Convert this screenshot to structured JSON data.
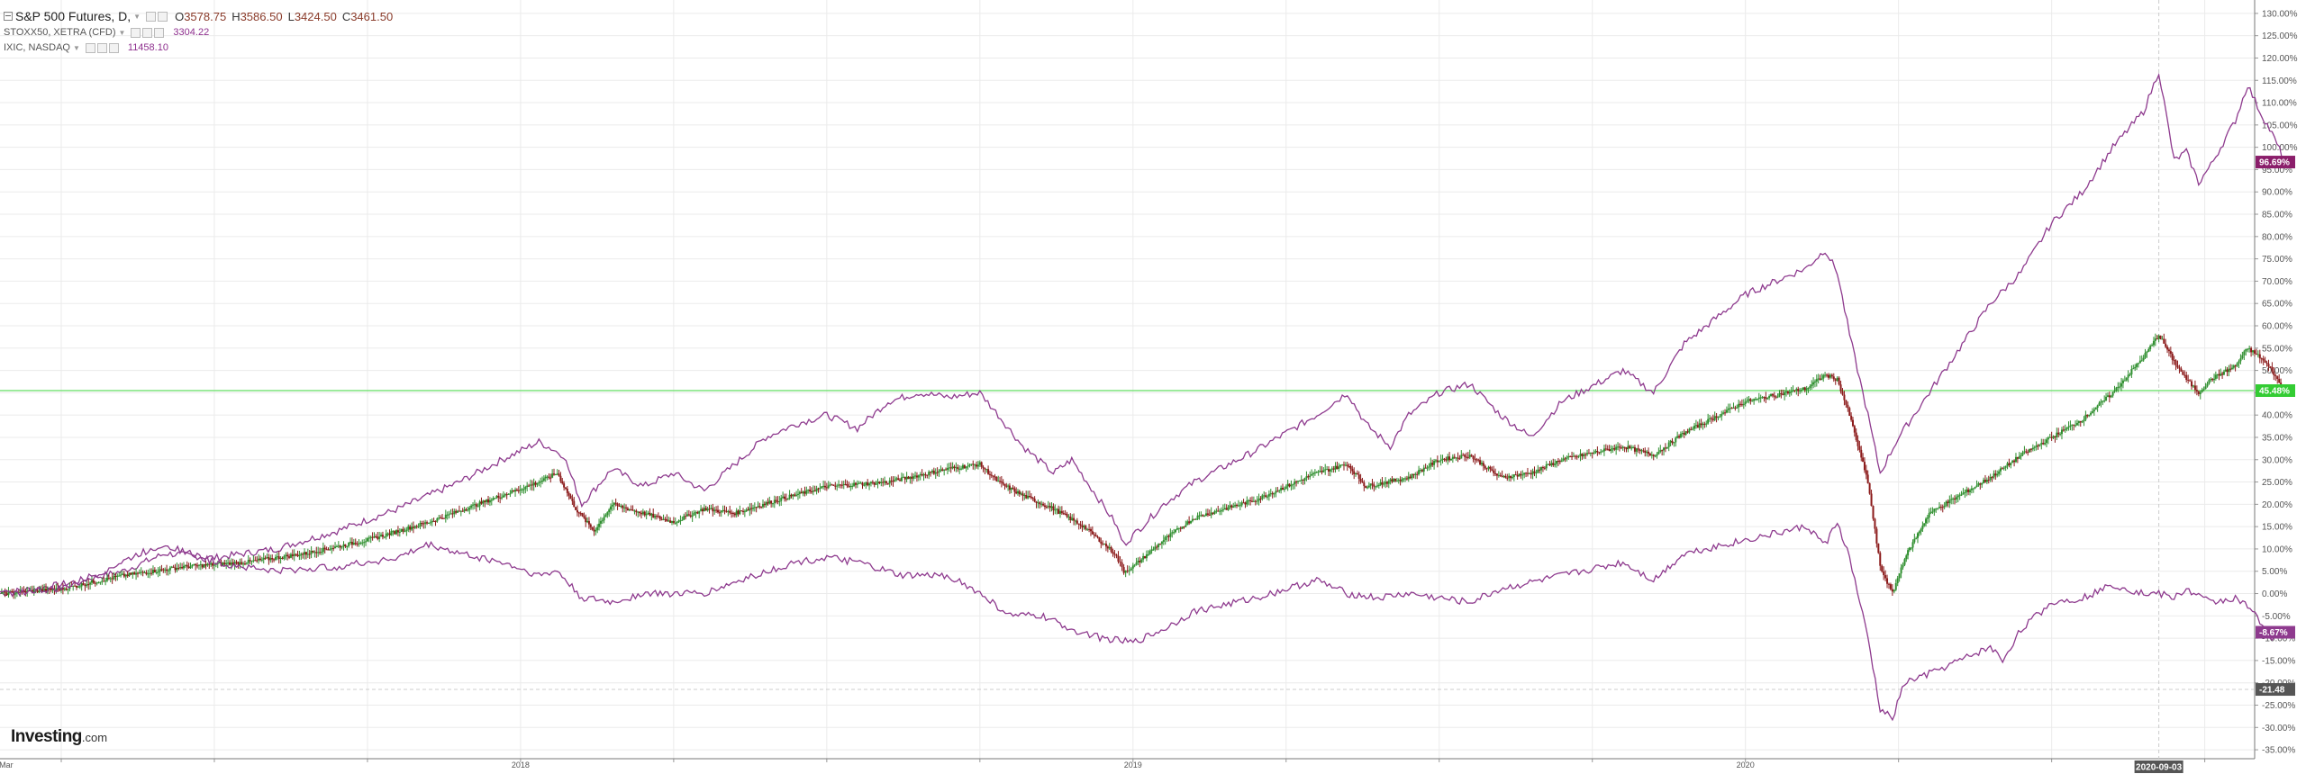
{
  "legend": {
    "main": {
      "name": "S&P 500 Futures, D,",
      "open_label": "O",
      "open": "3578.75",
      "high_label": "H",
      "high": "3586.50",
      "low_label": "L",
      "low": "3424.50",
      "close_label": "C",
      "close": "3461.50"
    },
    "series": [
      {
        "name": "STOXX50, XETRA (CFD)",
        "value": "3304.22"
      },
      {
        "name": "IXIC, NASDAQ",
        "value": "11458.10"
      }
    ]
  },
  "logo": {
    "brand": "Investing",
    "suffix": ".com"
  },
  "colors": {
    "up": "#2f8f2f",
    "down": "#8b1a1a",
    "overlay": "#8e3a8e",
    "hline": "#7be37b",
    "grid": "#ebebeb",
    "axis_text": "#555555",
    "crosshair": "#cccccc"
  },
  "chart_data": {
    "type": "line",
    "y_unit": "%",
    "ylim": [
      -37,
      133
    ],
    "y_ticks": [
      "130.00%",
      "125.00%",
      "120.00%",
      "115.00%",
      "110.00%",
      "105.00%",
      "100.00%",
      "95.00%",
      "90.00%",
      "85.00%",
      "80.00%",
      "75.00%",
      "70.00%",
      "65.00%",
      "60.00%",
      "55.00%",
      "50.00%",
      "45.00%",
      "40.00%",
      "35.00%",
      "30.00%",
      "25.00%",
      "20.00%",
      "15.00%",
      "10.00%",
      "5.00%",
      "0.00%",
      "-5.00%",
      "-10.00%",
      "-15.00%",
      "-20.00%",
      "-25.00%",
      "-30.00%",
      "-35.00%"
    ],
    "y_tick_values": [
      130,
      125,
      120,
      115,
      110,
      105,
      100,
      95,
      90,
      85,
      80,
      75,
      70,
      65,
      60,
      55,
      50,
      45,
      40,
      35,
      30,
      25,
      20,
      15,
      10,
      5,
      0,
      -5,
      -10,
      -15,
      -20,
      -25,
      -30,
      -35
    ],
    "x_range": [
      2017.15,
      2020.83
    ],
    "x_ticks": [
      {
        "label": "Mar",
        "t": 2017.16
      },
      {
        "label": "2018",
        "t": 2018.0
      },
      {
        "label": "2019",
        "t": 2019.0
      },
      {
        "label": "2020",
        "t": 2020.0
      }
    ],
    "grid": true,
    "hline_value": 45.48,
    "hline_label": "45.48%",
    "crosshair": {
      "t": 2020.675,
      "date_label": "2020-09-03",
      "value_label": "-21.48"
    },
    "series": [
      {
        "name": "IXIC, NASDAQ",
        "kind": "line",
        "last_label": "96.69%",
        "points": [
          [
            2017.15,
            0
          ],
          [
            2017.25,
            2
          ],
          [
            2017.35,
            5
          ],
          [
            2017.42,
            9
          ],
          [
            2017.5,
            8
          ],
          [
            2017.6,
            10
          ],
          [
            2017.7,
            14
          ],
          [
            2017.8,
            19
          ],
          [
            2017.9,
            25
          ],
          [
            2017.97,
            30
          ],
          [
            2018.03,
            34
          ],
          [
            2018.07,
            31
          ],
          [
            2018.1,
            20
          ],
          [
            2018.15,
            28
          ],
          [
            2018.2,
            24
          ],
          [
            2018.25,
            27
          ],
          [
            2018.3,
            23
          ],
          [
            2018.35,
            29
          ],
          [
            2018.4,
            35
          ],
          [
            2018.45,
            38
          ],
          [
            2018.5,
            40
          ],
          [
            2018.55,
            37
          ],
          [
            2018.6,
            43
          ],
          [
            2018.65,
            45
          ],
          [
            2018.7,
            44
          ],
          [
            2018.75,
            45
          ],
          [
            2018.78,
            40
          ],
          [
            2018.82,
            33
          ],
          [
            2018.87,
            27
          ],
          [
            2018.9,
            30
          ],
          [
            2018.94,
            22
          ],
          [
            2018.97,
            16
          ],
          [
            2018.985,
            11
          ],
          [
            2019.0,
            13
          ],
          [
            2019.05,
            20
          ],
          [
            2019.1,
            25
          ],
          [
            2019.2,
            32
          ],
          [
            2019.3,
            40
          ],
          [
            2019.35,
            45
          ],
          [
            2019.38,
            38
          ],
          [
            2019.42,
            33
          ],
          [
            2019.45,
            40
          ],
          [
            2019.5,
            45
          ],
          [
            2019.55,
            47
          ],
          [
            2019.6,
            40
          ],
          [
            2019.65,
            35
          ],
          [
            2019.7,
            43
          ],
          [
            2019.8,
            50
          ],
          [
            2019.85,
            45
          ],
          [
            2019.9,
            56
          ],
          [
            2020.0,
            67
          ],
          [
            2020.1,
            73
          ],
          [
            2020.13,
            77
          ],
          [
            2020.15,
            72
          ],
          [
            2020.17,
            58
          ],
          [
            2020.2,
            40
          ],
          [
            2020.22,
            27
          ],
          [
            2020.25,
            35
          ],
          [
            2020.3,
            45
          ],
          [
            2020.35,
            55
          ],
          [
            2020.4,
            65
          ],
          [
            2020.45,
            72
          ],
          [
            2020.5,
            83
          ],
          [
            2020.55,
            90
          ],
          [
            2020.6,
            100
          ],
          [
            2020.65,
            108
          ],
          [
            2020.675,
            117
          ],
          [
            2020.7,
            97
          ],
          [
            2020.72,
            99
          ],
          [
            2020.74,
            92
          ],
          [
            2020.76,
            96
          ],
          [
            2020.8,
            106
          ],
          [
            2020.82,
            114
          ],
          [
            2020.84,
            108
          ],
          [
            2020.86,
            103
          ],
          [
            2020.88,
            97
          ]
        ]
      },
      {
        "name": "S&P 500 Futures",
        "kind": "candle",
        "last_label": "45.48%",
        "points": [
          [
            2017.15,
            0
          ],
          [
            2017.25,
            1
          ],
          [
            2017.35,
            4
          ],
          [
            2017.45,
            6
          ],
          [
            2017.55,
            7
          ],
          [
            2017.65,
            9
          ],
          [
            2017.75,
            12
          ],
          [
            2017.85,
            16
          ],
          [
            2017.95,
            21
          ],
          [
            2018.03,
            25
          ],
          [
            2018.06,
            27
          ],
          [
            2018.09,
            19
          ],
          [
            2018.12,
            14
          ],
          [
            2018.15,
            20
          ],
          [
            2018.2,
            18
          ],
          [
            2018.25,
            16
          ],
          [
            2018.3,
            19
          ],
          [
            2018.35,
            18
          ],
          [
            2018.42,
            21
          ],
          [
            2018.5,
            24
          ],
          [
            2018.6,
            25
          ],
          [
            2018.7,
            28
          ],
          [
            2018.75,
            29
          ],
          [
            2018.78,
            25
          ],
          [
            2018.82,
            22
          ],
          [
            2018.87,
            19
          ],
          [
            2018.92,
            15
          ],
          [
            2018.97,
            9
          ],
          [
            2018.985,
            5
          ],
          [
            2019.0,
            6
          ],
          [
            2019.05,
            12
          ],
          [
            2019.1,
            17
          ],
          [
            2019.2,
            21
          ],
          [
            2019.3,
            27
          ],
          [
            2019.35,
            29
          ],
          [
            2019.38,
            24
          ],
          [
            2019.45,
            26
          ],
          [
            2019.5,
            30
          ],
          [
            2019.55,
            31
          ],
          [
            2019.6,
            26
          ],
          [
            2019.65,
            27
          ],
          [
            2019.7,
            30
          ],
          [
            2019.8,
            33
          ],
          [
            2019.85,
            31
          ],
          [
            2019.9,
            36
          ],
          [
            2020.0,
            43
          ],
          [
            2020.1,
            46
          ],
          [
            2020.13,
            49
          ],
          [
            2020.15,
            48
          ],
          [
            2020.17,
            40
          ],
          [
            2020.2,
            25
          ],
          [
            2020.22,
            6
          ],
          [
            2020.24,
            0
          ],
          [
            2020.26,
            8
          ],
          [
            2020.3,
            18
          ],
          [
            2020.35,
            22
          ],
          [
            2020.4,
            26
          ],
          [
            2020.45,
            31
          ],
          [
            2020.5,
            35
          ],
          [
            2020.55,
            39
          ],
          [
            2020.6,
            45
          ],
          [
            2020.65,
            53
          ],
          [
            2020.675,
            58
          ],
          [
            2020.7,
            52
          ],
          [
            2020.72,
            48
          ],
          [
            2020.74,
            45
          ],
          [
            2020.76,
            48
          ],
          [
            2020.8,
            51
          ],
          [
            2020.82,
            55
          ],
          [
            2020.84,
            53
          ],
          [
            2020.86,
            50
          ],
          [
            2020.88,
            45
          ]
        ]
      },
      {
        "name": "STOXX50, XETRA (CFD)",
        "kind": "line",
        "last_label": "-8.67%",
        "points": [
          [
            2017.15,
            0
          ],
          [
            2017.25,
            1
          ],
          [
            2017.32,
            5
          ],
          [
            2017.38,
            9
          ],
          [
            2017.42,
            11
          ],
          [
            2017.5,
            7
          ],
          [
            2017.6,
            5
          ],
          [
            2017.7,
            6
          ],
          [
            2017.8,
            8
          ],
          [
            2017.85,
            11
          ],
          [
            2017.9,
            9
          ],
          [
            2017.97,
            7
          ],
          [
            2018.03,
            4
          ],
          [
            2018.06,
            5
          ],
          [
            2018.1,
            -1
          ],
          [
            2018.15,
            -2
          ],
          [
            2018.2,
            0
          ],
          [
            2018.3,
            0
          ],
          [
            2018.38,
            4
          ],
          [
            2018.45,
            7
          ],
          [
            2018.5,
            8
          ],
          [
            2018.55,
            7
          ],
          [
            2018.62,
            4
          ],
          [
            2018.7,
            4
          ],
          [
            2018.75,
            0
          ],
          [
            2018.8,
            -5
          ],
          [
            2018.85,
            -5
          ],
          [
            2018.9,
            -8
          ],
          [
            2018.95,
            -10
          ],
          [
            2019.0,
            -11
          ],
          [
            2019.05,
            -8
          ],
          [
            2019.1,
            -4
          ],
          [
            2019.2,
            -1
          ],
          [
            2019.3,
            3
          ],
          [
            2019.35,
            0
          ],
          [
            2019.4,
            -1
          ],
          [
            2019.45,
            0
          ],
          [
            2019.5,
            -1
          ],
          [
            2019.55,
            -2
          ],
          [
            2019.6,
            1
          ],
          [
            2019.7,
            4
          ],
          [
            2019.8,
            7
          ],
          [
            2019.85,
            3
          ],
          [
            2019.9,
            9
          ],
          [
            2020.0,
            12
          ],
          [
            2020.1,
            15
          ],
          [
            2020.13,
            11
          ],
          [
            2020.15,
            16
          ],
          [
            2020.17,
            8
          ],
          [
            2020.2,
            -10
          ],
          [
            2020.22,
            -26
          ],
          [
            2020.24,
            -28
          ],
          [
            2020.26,
            -20
          ],
          [
            2020.3,
            -18
          ],
          [
            2020.35,
            -15
          ],
          [
            2020.4,
            -12
          ],
          [
            2020.42,
            -15
          ],
          [
            2020.45,
            -8
          ],
          [
            2020.5,
            -2
          ],
          [
            2020.55,
            -1
          ],
          [
            2020.6,
            2
          ],
          [
            2020.65,
            0
          ],
          [
            2020.675,
            0
          ],
          [
            2020.7,
            -1
          ],
          [
            2020.72,
            1
          ],
          [
            2020.76,
            -2
          ],
          [
            2020.8,
            -1
          ],
          [
            2020.82,
            -3
          ],
          [
            2020.84,
            -6
          ],
          [
            2020.86,
            -10
          ],
          [
            2020.88,
            -9
          ]
        ]
      }
    ]
  }
}
